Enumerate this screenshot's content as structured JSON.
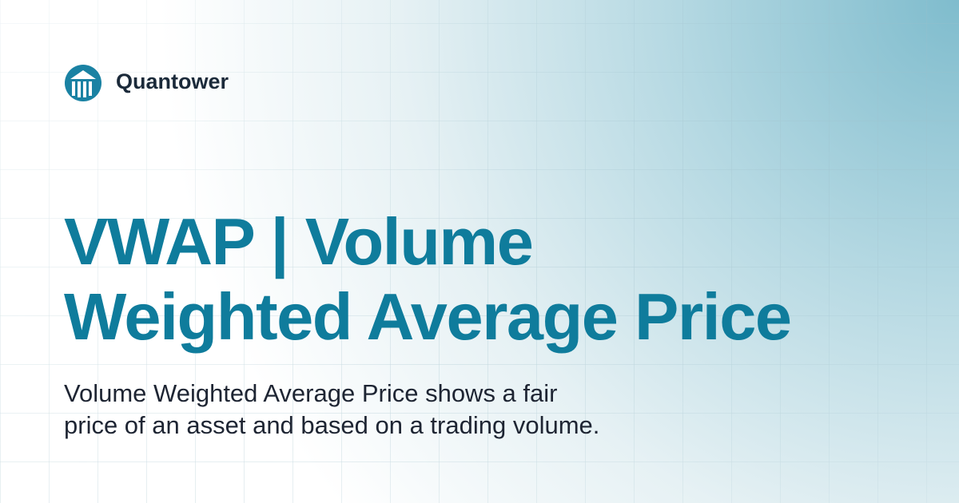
{
  "brand": {
    "name": "Quantower"
  },
  "title": {
    "lines": [
      "VWAP | Volume",
      "Weighted Average Price"
    ]
  },
  "description": {
    "lines": [
      "Volume Weighted Average Price shows a fair",
      "price of an asset and based on a trading volume."
    ]
  }
}
